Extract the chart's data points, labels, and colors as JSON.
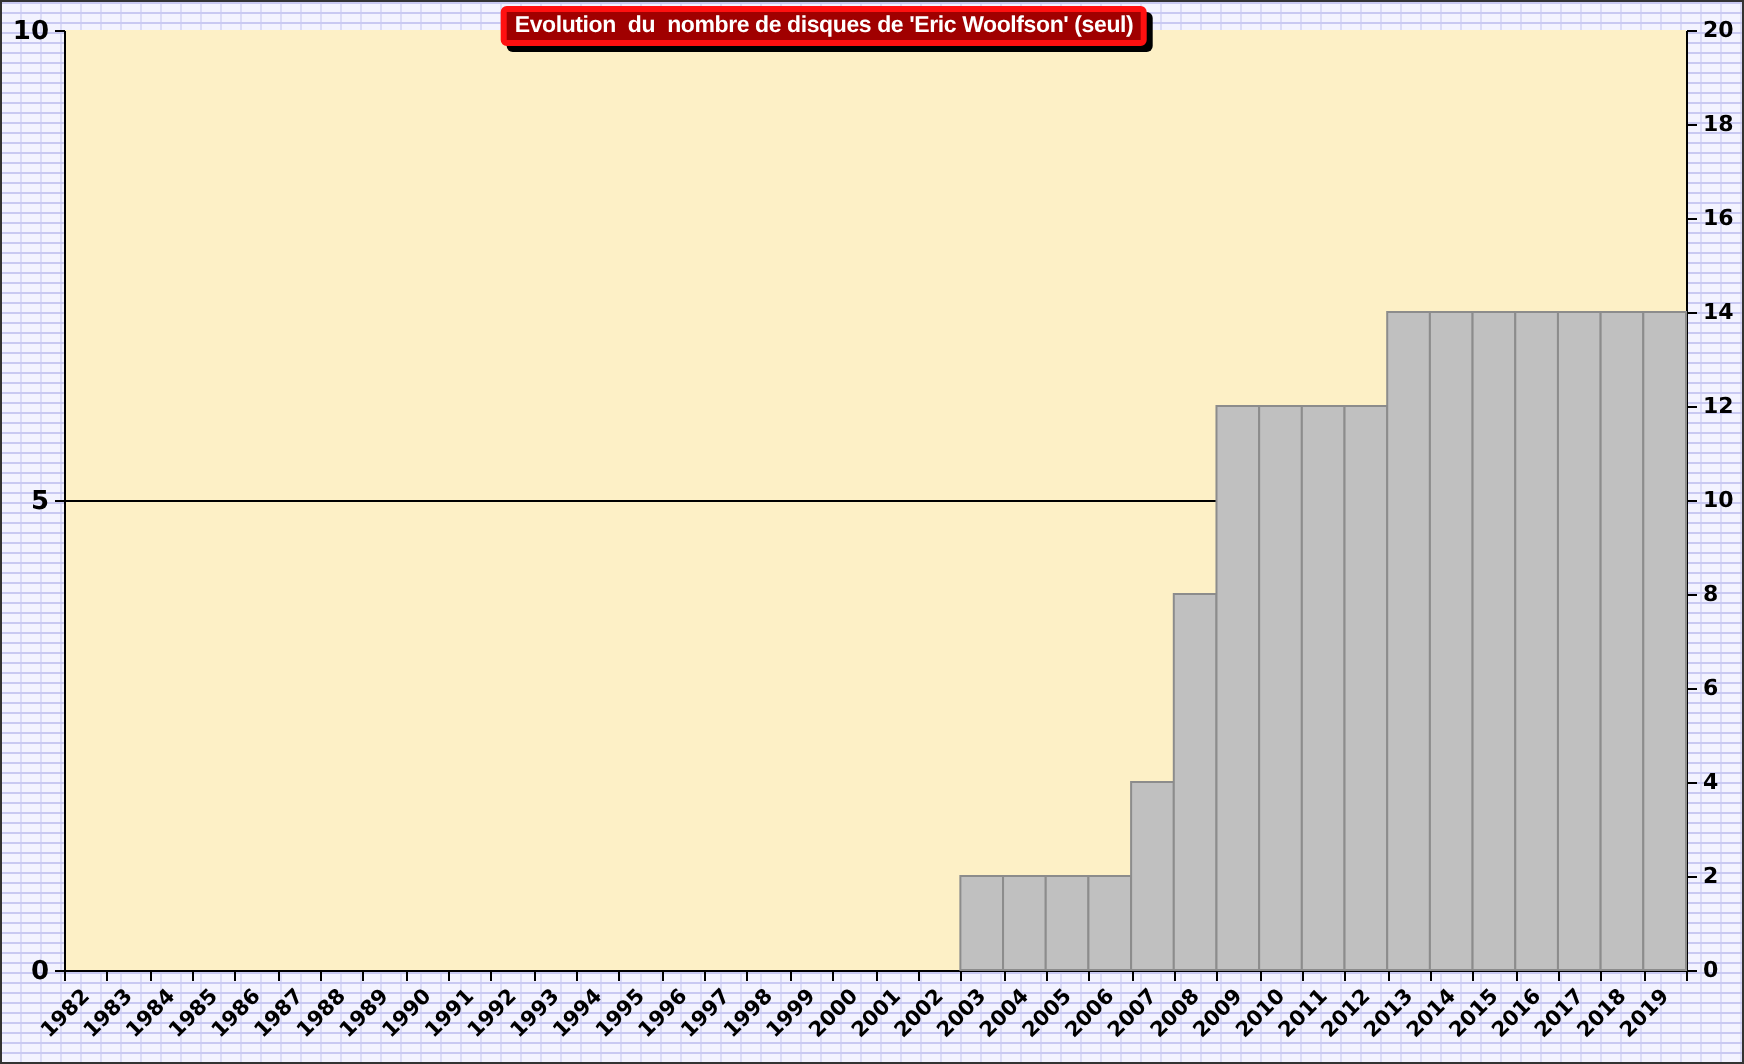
{
  "chart_data": {
    "type": "bar",
    "title": "Evolution  du  nombre de disques de 'Eric Woolfson' (seul)",
    "categories": [
      "1982",
      "1983",
      "1984",
      "1985",
      "1986",
      "1987",
      "1988",
      "1989",
      "1990",
      "1991",
      "1992",
      "1993",
      "1994",
      "1995",
      "1996",
      "1997",
      "1998",
      "1999",
      "2000",
      "2001",
      "2002",
      "2003",
      "2004",
      "2005",
      "2006",
      "2007",
      "2008",
      "2009",
      "2010",
      "2011",
      "2012",
      "2013",
      "2014",
      "2015",
      "2016",
      "2017",
      "2018",
      "2019"
    ],
    "series": [
      {
        "color": "#c0c0c0",
        "values": [
          null,
          null,
          null,
          null,
          null,
          null,
          null,
          null,
          null,
          null,
          null,
          null,
          null,
          null,
          null,
          null,
          null,
          null,
          null,
          null,
          null,
          1,
          1,
          1,
          1,
          2,
          4,
          6,
          6,
          6,
          6,
          7,
          7,
          7,
          7,
          7,
          7,
          7
        ]
      }
    ],
    "ylim": [
      0,
      10
    ],
    "yticks": [
      0,
      5,
      10
    ],
    "y2lim": [
      0,
      20
    ],
    "y2ticks": [
      0,
      2,
      4,
      6,
      8,
      10,
      12,
      14,
      16,
      18,
      20
    ],
    "grid": "y"
  }
}
